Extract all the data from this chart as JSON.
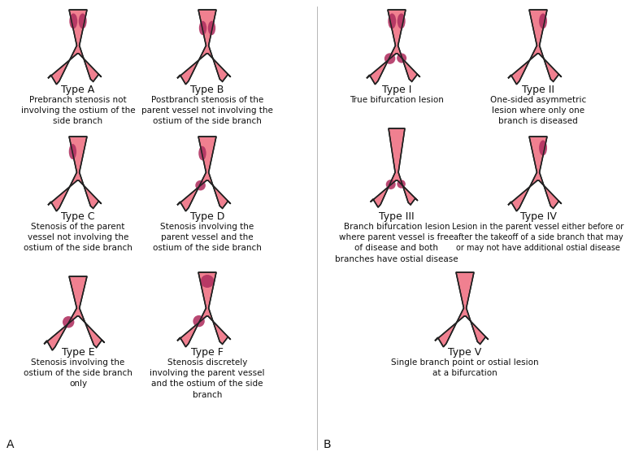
{
  "bg_color": "#ffffff",
  "vessel_fill": "#f08090",
  "vessel_edge": "#222222",
  "plaque_dark": "#b03060",
  "items_A": [
    {
      "id": "A",
      "title": "Type A",
      "desc": "Prebranch stenosis not\ninvolving the ostium of the\nside branch",
      "plaque_regions": [
        "stem_top_left",
        "stem_top_right"
      ]
    },
    {
      "id": "B",
      "title": "Type B",
      "desc": "Postbranch stenosis of the\nparent vessel not involving the\nostium of the side branch",
      "plaque_regions": [
        "stem_mid_left",
        "stem_mid_right"
      ]
    },
    {
      "id": "C",
      "title": "Type C",
      "desc": "Stenosis of the parent\nvessel not involving the\nostium of the side branch",
      "plaque_regions": [
        "stem_left_only"
      ]
    },
    {
      "id": "D",
      "title": "Type D",
      "desc": "Stenosis involving the\nparent vessel and the\nostium of the side branch",
      "plaque_regions": [
        "stem_left_and_lb_ostium"
      ]
    },
    {
      "id": "E",
      "title": "Type E",
      "desc": "Stenosis involving the\nostium of the side branch\nonly",
      "plaque_regions": [
        "lb_ostium_only"
      ]
    },
    {
      "id": "F",
      "title": "Type F",
      "desc": "Stenosis discretely\ninvolving the parent vessel\nand the ostium of the side\nbranch",
      "plaque_regions": [
        "stem_top_center",
        "lb_ostium_only"
      ]
    }
  ],
  "items_B": [
    {
      "id": "I",
      "title": "Type I",
      "desc": "True bifurcation lesion",
      "plaque_regions": [
        "stem_top_left",
        "stem_top_right",
        "lb_ostium",
        "rb_ostium"
      ],
      "style": "standard"
    },
    {
      "id": "II",
      "title": "Type II",
      "desc": "One-sided asymmetric\nlesion where only one\nbranch is diseased",
      "plaque_regions": [
        "stem_top_right_only"
      ],
      "style": "standard"
    },
    {
      "id": "III",
      "title": "Type III",
      "desc": "Branch bifurcation lesion\nwhere parent vessel is free\nof disease and both\nbranches have ostial disease",
      "plaque_regions": [
        "lb_ostium",
        "rb_ostium"
      ],
      "style": "tall_stem"
    },
    {
      "id": "IV",
      "title": "Type IV",
      "desc": "Lesion in the parent vessel either before or\nafter the takeoff of a side branch that may\nor may not have additional ostial disease",
      "plaque_regions": [
        "stem_top_right_only"
      ],
      "style": "standard"
    },
    {
      "id": "V",
      "title": "Type V",
      "desc": "Single branch point or ostial lesion\nat a bifurcation",
      "plaque_regions": [],
      "style": "no_plaque"
    }
  ]
}
